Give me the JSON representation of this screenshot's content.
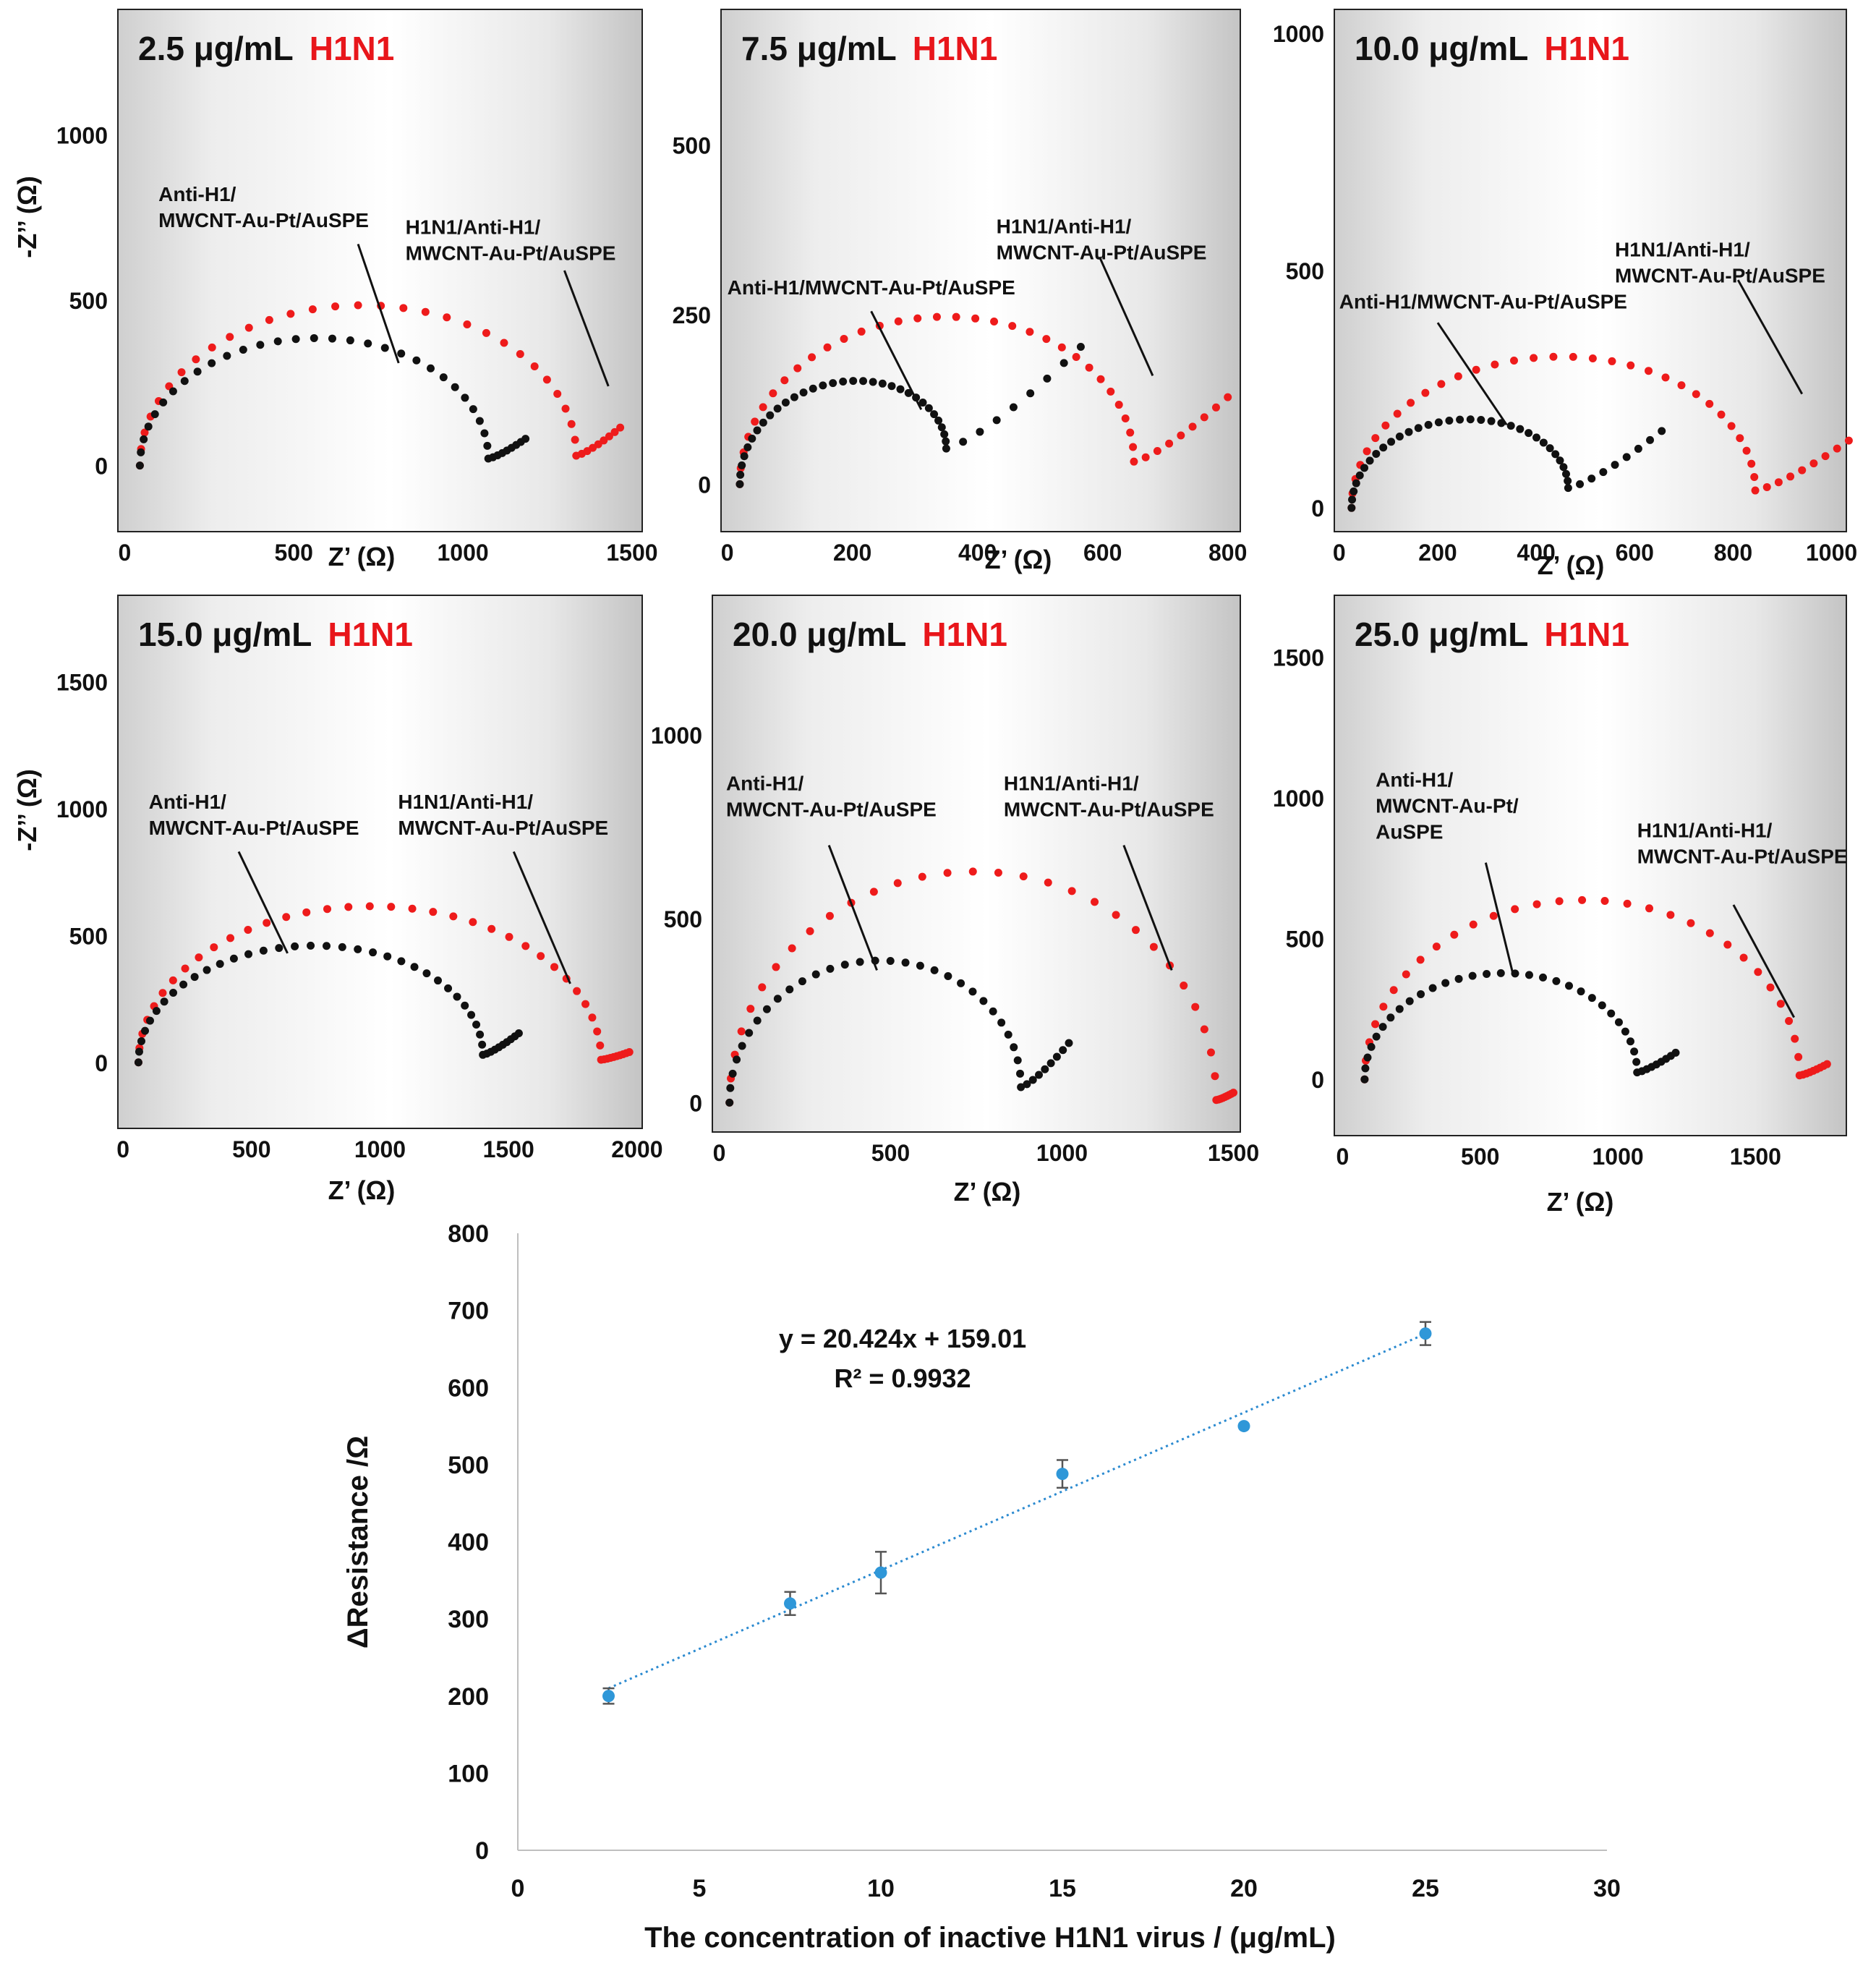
{
  "colors": {
    "black_series": "#111111",
    "red_series": "#ee1b1b",
    "analyte": "#e8161b",
    "fit_line": "#2b8ad0",
    "calib_marker": "#2f97d8",
    "error_bar": "#555555",
    "axis": "#222222",
    "calib_axis": "#bfbfbf"
  },
  "chart_data": [
    {
      "type": "scatter",
      "panel_id": "nyquist-2.5",
      "concentration": "2.5 μg/mL",
      "analyte": "H1N1",
      "xlabel": "Z’ (Ω)",
      "ylabel": "-Z’’ (Ω)",
      "xlim": [
        -20,
        1530
      ],
      "ylim": [
        -200,
        1380
      ],
      "xticks": [
        {
          "v": 0,
          "t": "0"
        },
        {
          "v": 500,
          "t": "500"
        },
        {
          "v": 1000,
          "t": "1000"
        },
        {
          "v": 1500,
          "t": "1500"
        }
      ],
      "yticks": [
        {
          "v": 0,
          "t": "0"
        },
        {
          "v": 500,
          "t": "500"
        },
        {
          "v": 1000,
          "t": "1000"
        }
      ],
      "series": [
        {
          "name": "Anti-H1/MWCNT-Au-Pt/AuSPE",
          "color": "black",
          "z0": 45,
          "r_ct": 1030,
          "peak": 375,
          "tail_dx": 110,
          "tail_dy": 60,
          "n": 30
        },
        {
          "name": "H1N1/Anti-H1/MWCNT-Au-Pt/AuSPE",
          "color": "red",
          "z0": 45,
          "r_ct": 1290,
          "peak": 470,
          "tail_dx": 130,
          "tail_dy": 85,
          "n": 30
        }
      ],
      "annotations": [
        {
          "lines": [
            "Anti-H1/",
            "MWCNT-Au-Pt/AuSPE"
          ],
          "x": 100,
          "y": 800,
          "lx1": 690,
          "ly1": 670,
          "lx2": 810,
          "ly2": 310
        },
        {
          "lines": [
            "H1N1/Anti-H1/",
            "MWCNT-Au-Pt/AuSPE"
          ],
          "x": 830,
          "y": 700,
          "lx1": 1300,
          "ly1": 590,
          "lx2": 1430,
          "ly2": 240
        }
      ]
    },
    {
      "type": "scatter",
      "panel_id": "nyquist-7.5",
      "concentration": "7.5 μg/mL",
      "analyte": "H1N1",
      "xlabel": "Z’ (Ω)",
      "ylabel": "",
      "xlim": [
        -10,
        820
      ],
      "ylim": [
        -70,
        700
      ],
      "xticks": [
        {
          "v": 0,
          "t": "0"
        },
        {
          "v": 200,
          "t": "200"
        },
        {
          "v": 400,
          "t": "400"
        },
        {
          "v": 600,
          "t": "600"
        },
        {
          "v": 800,
          "t": "800"
        }
      ],
      "yticks": [
        {
          "v": 0,
          "t": "0"
        },
        {
          "v": 250,
          "t": "250"
        },
        {
          "v": 500,
          "t": "500"
        }
      ],
      "series": [
        {
          "name": "Anti-H1/MWCNT-Au-Pt/AuSPE",
          "color": "black",
          "z0": 20,
          "r_ct": 330,
          "peak": 125,
          "tail_dx": 215,
          "tail_dy": 150,
          "n": 32
        },
        {
          "name": "H1N1/Anti-H1/MWCNT-Au-Pt/AuSPE",
          "color": "red",
          "z0": 20,
          "r_ct": 630,
          "peak": 230,
          "tail_dx": 150,
          "tail_dy": 95,
          "n": 32
        }
      ],
      "annotations": [
        {
          "lines": [
            "Anti-H1/MWCNT-Au-Pt/AuSPE"
          ],
          "x": 0,
          "y": 280,
          "lx1": 230,
          "ly1": 255,
          "lx2": 310,
          "ly2": 110
        },
        {
          "lines": [
            "H1N1/Anti-H1/",
            "MWCNT-Au-Pt/AuSPE"
          ],
          "x": 430,
          "y": 370,
          "lx1": 595,
          "ly1": 335,
          "lx2": 680,
          "ly2": 160
        }
      ]
    },
    {
      "type": "scatter",
      "panel_id": "nyquist-10.0",
      "concentration": "10.0 μg/mL",
      "analyte": "H1N1",
      "xlabel": "Z’ (Ω)",
      "ylabel": "",
      "xlim": [
        -10,
        1030
      ],
      "ylim": [
        -50,
        1050
      ],
      "xticks": [
        {
          "v": 0,
          "t": "0"
        },
        {
          "v": 200,
          "t": "200"
        },
        {
          "v": 400,
          "t": "400"
        },
        {
          "v": 600,
          "t": "600"
        },
        {
          "v": 800,
          "t": "800"
        },
        {
          "v": 1000,
          "t": "1000"
        }
      ],
      "yticks": [
        {
          "v": 0,
          "t": "0"
        },
        {
          "v": 500,
          "t": "500"
        },
        {
          "v": 1000,
          "t": "1000"
        }
      ],
      "series": [
        {
          "name": "Anti-H1/MWCNT-Au-Pt/AuSPE",
          "color": "black",
          "z0": 25,
          "r_ct": 440,
          "peak": 165,
          "tail_dx": 190,
          "tail_dy": 120,
          "n": 32
        },
        {
          "name": "H1N1/Anti-H1/MWCNT-Au-Pt/AuSPE",
          "color": "red",
          "z0": 25,
          "r_ct": 820,
          "peak": 300,
          "tail_dx": 190,
          "tail_dy": 105,
          "n": 32
        }
      ],
      "annotations": [
        {
          "lines": [
            "Anti-H1/MWCNT-Au-Pt/AuSPE"
          ],
          "x": 0,
          "y": 420,
          "lx1": 200,
          "ly1": 390,
          "lx2": 340,
          "ly2": 175
        },
        {
          "lines": [
            "H1N1/Anti-H1/",
            "MWCNT-Au-Pt/AuSPE"
          ],
          "x": 560,
          "y": 530,
          "lx1": 810,
          "ly1": 480,
          "lx2": 940,
          "ly2": 240
        }
      ]
    },
    {
      "type": "scatter",
      "panel_id": "nyquist-15.0",
      "concentration": "15.0 μg/mL",
      "analyte": "H1N1",
      "xlabel": "Z’ (Ω)",
      "ylabel": "-Z’’ (Ω)",
      "xlim": [
        -20,
        2020
      ],
      "ylim": [
        -260,
        1840
      ],
      "xticks": [
        {
          "v": 0,
          "t": "0"
        },
        {
          "v": 500,
          "t": "500"
        },
        {
          "v": 1000,
          "t": "1000"
        },
        {
          "v": 1500,
          "t": "1500"
        },
        {
          "v": 2000,
          "t": "2000"
        }
      ],
      "yticks": [
        {
          "v": 0,
          "t": "0"
        },
        {
          "v": 500,
          "t": "500"
        },
        {
          "v": 1000,
          "t": "1000"
        },
        {
          "v": 1500,
          "t": "1500"
        }
      ],
      "series": [
        {
          "name": "Anti-H1/MWCNT-Au-Pt/AuSPE",
          "color": "black",
          "z0": 60,
          "r_ct": 1340,
          "peak": 445,
          "tail_dx": 140,
          "tail_dy": 85,
          "n": 34
        },
        {
          "name": "H1N1/Anti-H1/MWCNT-Au-Pt/AuSPE",
          "color": "red",
          "z0": 60,
          "r_ct": 1800,
          "peak": 610,
          "tail_dx": 110,
          "tail_dy": 30,
          "n": 34
        }
      ],
      "annotations": [
        {
          "lines": [
            "Anti-H1/",
            "MWCNT-Au-Pt/AuSPE"
          ],
          "x": 100,
          "y": 1000,
          "lx1": 450,
          "ly1": 830,
          "lx2": 640,
          "ly2": 430
        },
        {
          "lines": [
            "H1N1/Anti-H1/",
            "MWCNT-Au-Pt/AuSPE"
          ],
          "x": 1070,
          "y": 1000,
          "lx1": 1520,
          "ly1": 830,
          "lx2": 1740,
          "ly2": 310
        }
      ]
    },
    {
      "type": "scatter",
      "panel_id": "nyquist-20.0",
      "concentration": "20.0 μg/mL",
      "analyte": "H1N1",
      "xlabel": "Z’ (Ω)",
      "ylabel": "",
      "xlim": [
        -20,
        1520
      ],
      "ylim": [
        -80,
        1380
      ],
      "xticks": [
        {
          "v": 0,
          "t": "0"
        },
        {
          "v": 500,
          "t": "500"
        },
        {
          "v": 1000,
          "t": "1000"
        },
        {
          "v": 1500,
          "t": "1500"
        }
      ],
      "yticks": [
        {
          "v": 0,
          "t": "0"
        },
        {
          "v": 500,
          "t": "500"
        },
        {
          "v": 1000,
          "t": "1000"
        }
      ],
      "series": [
        {
          "name": "Anti-H1/MWCNT-Au-Pt/AuSPE",
          "color": "black",
          "z0": 30,
          "r_ct": 850,
          "peak": 365,
          "tail_dx": 140,
          "tail_dy": 120,
          "n": 30
        },
        {
          "name": "H1N1/Anti-H1/MWCNT-Au-Pt/AuSPE",
          "color": "red",
          "z0": 30,
          "r_ct": 1420,
          "peak": 625,
          "tail_dx": 50,
          "tail_dy": 20,
          "n": 30
        }
      ],
      "annotations": [
        {
          "lines": [
            "Anti-H1/",
            "MWCNT-Au-Pt/AuSPE"
          ],
          "x": 20,
          "y": 850,
          "lx1": 320,
          "ly1": 700,
          "lx2": 460,
          "ly2": 360
        },
        {
          "lines": [
            "H1N1/Anti-H1/",
            "MWCNT-Au-Pt/AuSPE"
          ],
          "x": 830,
          "y": 850,
          "lx1": 1180,
          "ly1": 700,
          "lx2": 1320,
          "ly2": 360
        }
      ]
    },
    {
      "type": "scatter",
      "panel_id": "nyquist-25.0",
      "concentration": "25.0 μg/mL",
      "analyte": "H1N1",
      "xlabel": "Z’ (Ω)",
      "ylabel": "",
      "xlim": [
        -30,
        1830
      ],
      "ylim": [
        -200,
        1720
      ],
      "xticks": [
        {
          "v": 0,
          "t": "0"
        },
        {
          "v": 500,
          "t": "500"
        },
        {
          "v": 1000,
          "t": "1000"
        },
        {
          "v": 1500,
          "t": "1500"
        }
      ],
      "yticks": [
        {
          "v": 0,
          "t": "0"
        },
        {
          "v": 500,
          "t": "500"
        },
        {
          "v": 1000,
          "t": "1000"
        },
        {
          "v": 1500,
          "t": "1500"
        }
      ],
      "series": [
        {
          "name": "Anti-H1/MWCNT-Au-Pt/AuSPE",
          "color": "black",
          "z0": 80,
          "r_ct": 990,
          "peak": 365,
          "tail_dx": 140,
          "tail_dy": 70,
          "n": 30
        },
        {
          "name": "H1N1/Anti-H1/MWCNT-Au-Pt/AuSPE",
          "color": "red",
          "z0": 80,
          "r_ct": 1580,
          "peak": 630,
          "tail_dx": 100,
          "tail_dy": 40,
          "n": 30
        }
      ],
      "annotations": [
        {
          "lines": [
            "Anti-H1/",
            "MWCNT-Au-Pt/",
            "AuSPE"
          ],
          "x": 120,
          "y": 1040,
          "lx1": 520,
          "ly1": 770,
          "lx2": 620,
          "ly2": 370
        },
        {
          "lines": [
            "H1N1/Anti-H1/",
            "MWCNT-Au-Pt/AuSPE"
          ],
          "x": 1070,
          "y": 860,
          "lx1": 1420,
          "ly1": 620,
          "lx2": 1640,
          "ly2": 220
        }
      ]
    },
    {
      "type": "scatter",
      "panel_id": "calibration",
      "xlabel": "The concentration of inactive H1N1 virus / (μg/mL)",
      "ylabel": "ΔResistance /Ω",
      "xlim": [
        0,
        30
      ],
      "ylim": [
        0,
        800
      ],
      "xticks": [
        {
          "v": 0,
          "t": "0"
        },
        {
          "v": 5,
          "t": "5"
        },
        {
          "v": 10,
          "t": "10"
        },
        {
          "v": 15,
          "t": "15"
        },
        {
          "v": 20,
          "t": "20"
        },
        {
          "v": 25,
          "t": "25"
        },
        {
          "v": 30,
          "t": "30"
        }
      ],
      "yticks": [
        {
          "v": 0,
          "t": "0"
        },
        {
          "v": 100,
          "t": "100"
        },
        {
          "v": 200,
          "t": "200"
        },
        {
          "v": 300,
          "t": "300"
        },
        {
          "v": 400,
          "t": "400"
        },
        {
          "v": 500,
          "t": "500"
        },
        {
          "v": 600,
          "t": "600"
        },
        {
          "v": 700,
          "t": "700"
        },
        {
          "v": 800,
          "t": "800"
        }
      ],
      "x": [
        2.5,
        7.5,
        10,
        15,
        20,
        25
      ],
      "y": [
        200,
        320,
        360,
        488,
        550,
        670
      ],
      "error": [
        10,
        15,
        27,
        18,
        0,
        15
      ],
      "fit": {
        "slope": 20.424,
        "intercept": 159.01,
        "x_range": [
          2.5,
          25
        ],
        "style": "dotted"
      },
      "equation": "y = 20.424x + 159.01",
      "r2": "R² = 0.9932"
    }
  ]
}
